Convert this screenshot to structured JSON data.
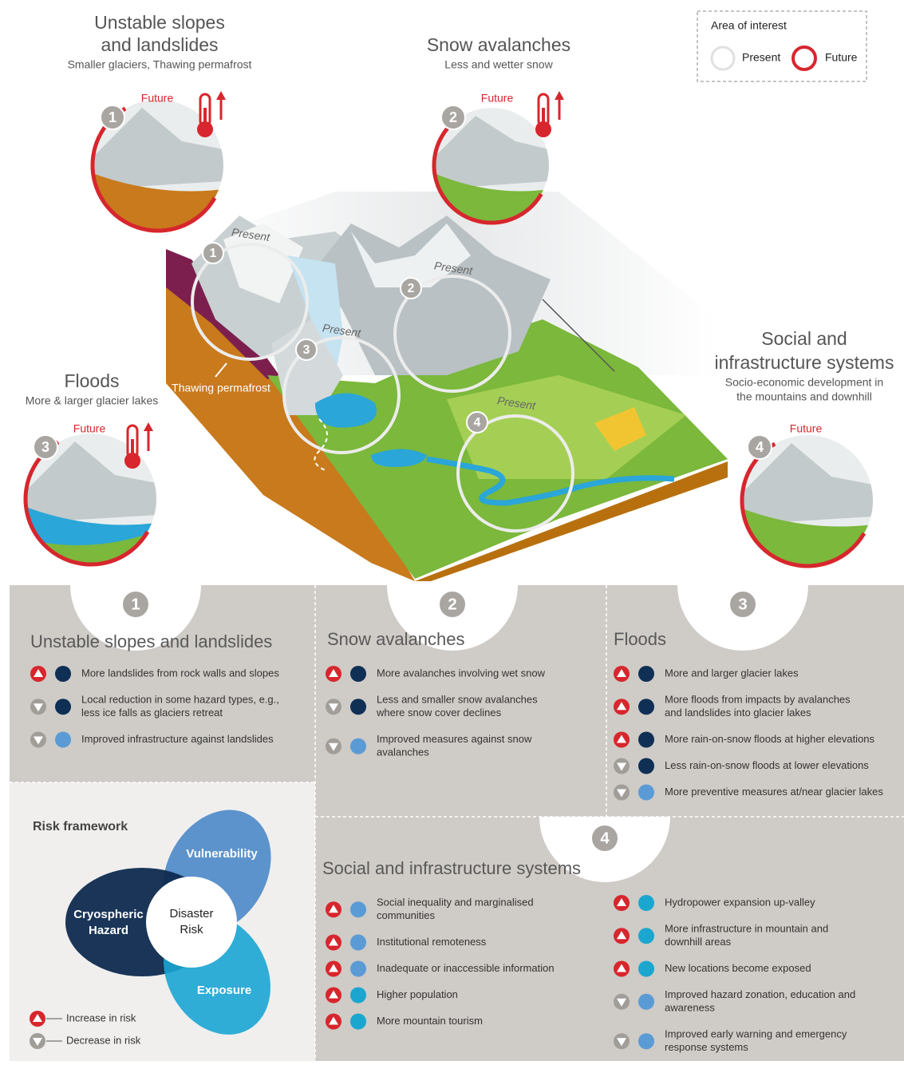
{
  "legend": {
    "title": "Area of interest",
    "present": "Present",
    "future": "Future"
  },
  "callouts": [
    {
      "number": "1",
      "title": [
        "Unstable slopes",
        "and landslides"
      ],
      "subtitle": [
        "Smaller glaciers, Thawing permafrost"
      ],
      "label": "Future"
    },
    {
      "number": "2",
      "title": [
        "Snow avalanches"
      ],
      "subtitle": [
        "Less and wetter snow"
      ],
      "label": "Future"
    },
    {
      "number": "3",
      "title": [
        "Floods"
      ],
      "subtitle": [
        "More & larger glacier lakes"
      ],
      "label": "Future"
    },
    {
      "number": "4",
      "title": [
        "Social and",
        "infrastructure systems"
      ],
      "subtitle": [
        "Socio-economic development in",
        "the mountains and downhill"
      ],
      "label": "Future"
    }
  ],
  "present_areas": [
    {
      "label": "Present"
    },
    {
      "label": "Present"
    },
    {
      "label": "Present"
    },
    {
      "label": "Present"
    }
  ],
  "annotation": "Thawing permafrost",
  "trend_colors": {
    "increase": "#d7262d",
    "decrease": "#a19e9a"
  },
  "panels": [
    {
      "number": "1",
      "title": "Unstable slopes and landslides",
      "items": [
        {
          "trend": "increase",
          "dot": "#0f2f55",
          "text": [
            "More landslides from rock walls and slopes"
          ]
        },
        {
          "trend": "decrease",
          "dot": "#0f2f55",
          "text": [
            "Local reduction in some hazard types, e.g.,",
            "less ice falls as glaciers retreat"
          ]
        },
        {
          "trend": "decrease",
          "dot": "#5b9bd5",
          "text": [
            "Improved infrastructure against landslides"
          ]
        }
      ]
    },
    {
      "number": "2",
      "title": "Snow avalanches",
      "items": [
        {
          "trend": "increase",
          "dot": "#0f2f55",
          "text": [
            "More avalanches involving wet snow"
          ]
        },
        {
          "trend": "decrease",
          "dot": "#0f2f55",
          "text": [
            "Less and smaller snow avalanches",
            "where snow cover declines"
          ]
        },
        {
          "trend": "decrease",
          "dot": "#5b9bd5",
          "text": [
            "Improved measures against snow",
            "avalanches"
          ]
        }
      ]
    },
    {
      "number": "3",
      "title": "Floods",
      "items": [
        {
          "trend": "increase",
          "dot": "#0f2f55",
          "text": [
            "More and larger glacier lakes"
          ]
        },
        {
          "trend": "increase",
          "dot": "#0f2f55",
          "text": [
            "More floods from impacts by avalanches",
            "and landslides into glacier lakes"
          ]
        },
        {
          "trend": "increase",
          "dot": "#0f2f55",
          "text": [
            "More rain-on-snow floods at higher elevations"
          ]
        },
        {
          "trend": "decrease",
          "dot": "#0f2f55",
          "text": [
            "Less rain-on-snow floods at lower elevations"
          ]
        },
        {
          "trend": "decrease",
          "dot": "#5b9bd5",
          "text": [
            "More preventive measures at/near glacier lakes"
          ]
        }
      ]
    }
  ],
  "social_panel": {
    "number": "4",
    "title": "Social and infrastructure systems",
    "columns": [
      [
        {
          "trend": "increase",
          "dot": "#5b9bd5",
          "text": [
            "Social inequality and marginalised",
            "communities"
          ]
        },
        {
          "trend": "increase",
          "dot": "#5b9bd5",
          "text": [
            "Institutional remoteness"
          ]
        },
        {
          "trend": "increase",
          "dot": "#5b9bd5",
          "text": [
            "Inadequate or inaccessible information"
          ]
        },
        {
          "trend": "increase",
          "dot": "#1ba6cf",
          "text": [
            "Higher population"
          ]
        },
        {
          "trend": "increase",
          "dot": "#1ba6cf",
          "text": [
            "More mountain tourism"
          ]
        }
      ],
      [
        {
          "trend": "increase",
          "dot": "#1ba6cf",
          "text": [
            "Hydropower expansion up-valley"
          ]
        },
        {
          "trend": "increase",
          "dot": "#1ba6cf",
          "text": [
            "More infrastructure in mountain and",
            "downhill areas"
          ]
        },
        {
          "trend": "increase",
          "dot": "#1ba6cf",
          "text": [
            "New locations become exposed"
          ]
        },
        {
          "trend": "decrease",
          "dot": "#5b9bd5",
          "text": [
            "Improved hazard zonation, education and",
            "awareness"
          ]
        },
        {
          "trend": "decrease",
          "dot": "#5b9bd5",
          "text": [
            "Improved early warning and emergency",
            "response systems"
          ]
        }
      ]
    ]
  },
  "risk_framework": {
    "title": "Risk framework",
    "vulnerability": "Vulnerability",
    "hazard": [
      "Cryospheric",
      "Hazard"
    ],
    "risk": [
      "Disaster",
      "Risk"
    ],
    "exposure": "Exposure",
    "legend": {
      "increase": "Increase in risk",
      "decrease": "Decrease in risk"
    }
  }
}
